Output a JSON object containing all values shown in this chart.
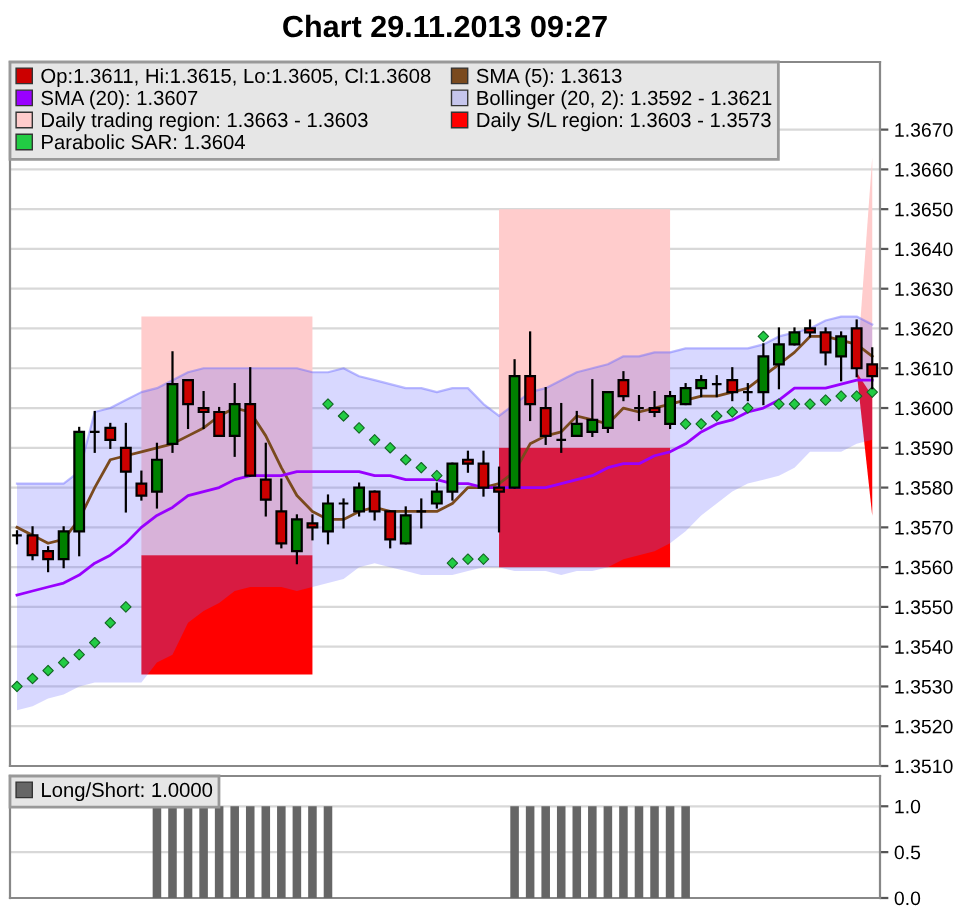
{
  "chart_data": [
    {
      "type": "candlestick",
      "title": "Chart 29.11.2013 09:27",
      "categories": [
        null,
        null,
        null,
        null,
        null,
        null,
        null,
        null,
        null,
        null,
        null,
        null,
        null,
        null,
        null,
        null,
        null,
        null,
        null,
        null,
        null,
        null,
        null,
        null,
        null,
        null,
        null,
        null,
        null,
        null,
        null,
        null,
        null,
        null,
        null,
        null,
        null,
        null,
        null,
        null,
        null,
        null,
        null,
        null,
        null,
        null,
        null,
        null,
        null,
        null,
        null,
        null,
        null,
        null,
        null,
        null
      ],
      "series": [
        {
          "name": "Op:1.3611, Hi:1.3615, Lo:1.3605, Cl:1.3608",
          "type": "candlestick",
          "color": "#cc0000",
          "colors": [
            "#000000",
            "#cc0000",
            "#cc0000",
            "#008000",
            "#008000",
            "#000000",
            "#cc0000",
            "#cc0000",
            "#cc0000",
            "#008000",
            "#008000",
            "#cc0000",
            "#cc0000",
            "#cc0000",
            "#008000",
            "#cc0000",
            "#cc0000",
            "#cc0000",
            "#008000",
            "#cc0000",
            "#008000",
            "#000000",
            "#008000",
            "#cc0000",
            "#cc0000",
            "#008000",
            "#000000",
            "#008000",
            "#008000",
            "#cc0000",
            "#cc0000",
            "#cc0000",
            "#008000",
            "#cc0000",
            "#cc0000",
            "#000000",
            "#008000",
            "#008000",
            "#008000",
            "#cc0000",
            "#000000",
            "#cc0000",
            "#008000",
            "#008000",
            "#008000",
            "#000000",
            "#cc0000",
            "#000000",
            "#008000",
            "#008000",
            "#008000",
            "#cc0000",
            "#cc0000",
            "#008000",
            "#cc0000",
            "#cc0000"
          ],
          "ohlc": [
            [
              1.3568,
              1.3569,
              1.3566,
              1.3568
            ],
            [
              1.3568,
              1.357,
              1.3562,
              1.3563
            ],
            [
              1.3564,
              1.3565,
              1.3559,
              1.3562
            ],
            [
              1.3562,
              1.357,
              1.356,
              1.3569
            ],
            [
              1.3569,
              1.3595,
              1.3563,
              1.3594
            ],
            [
              1.3594,
              1.3599,
              1.3589,
              1.3594
            ],
            [
              1.3595,
              1.3596,
              1.359,
              1.3592
            ],
            [
              1.359,
              1.3596,
              1.3574,
              1.3584
            ],
            [
              1.3581,
              1.3584,
              1.3577,
              1.3578
            ],
            [
              1.3579,
              1.3591,
              1.3575,
              1.3587
            ],
            [
              1.3591,
              1.3614,
              1.3589,
              1.3606
            ],
            [
              1.3607,
              1.3607,
              1.3595,
              1.3601
            ],
            [
              1.36,
              1.3604,
              1.3595,
              1.3599
            ],
            [
              1.3599,
              1.36,
              1.3593,
              1.3593
            ],
            [
              1.3593,
              1.3606,
              1.3588,
              1.3601
            ],
            [
              1.3601,
              1.361,
              1.3583,
              1.3583
            ],
            [
              1.3582,
              1.3591,
              1.3573,
              1.3577
            ],
            [
              1.3574,
              1.3582,
              1.3565,
              1.3566
            ],
            [
              1.3564,
              1.3573,
              1.3561,
              1.3572
            ],
            [
              1.3571,
              1.3573,
              1.3567,
              1.357
            ],
            [
              1.3569,
              1.3578,
              1.3566,
              1.3576
            ],
            [
              1.3576,
              1.3577,
              1.357,
              1.3576
            ],
            [
              1.3574,
              1.3581,
              1.3573,
              1.358
            ],
            [
              1.3579,
              1.3579,
              1.3572,
              1.3574
            ],
            [
              1.3574,
              1.3574,
              1.3565,
              1.3567
            ],
            [
              1.3566,
              1.3575,
              1.3566,
              1.3573
            ],
            [
              1.3574,
              1.3577,
              1.357,
              1.3574
            ],
            [
              1.3576,
              1.3581,
              1.3575,
              1.3579
            ],
            [
              1.3579,
              1.3586,
              1.3577,
              1.3586
            ],
            [
              1.3587,
              1.3589,
              1.3584,
              1.3586
            ],
            [
              1.3586,
              1.3589,
              1.3578,
              1.358
            ],
            [
              1.358,
              1.3585,
              1.3569,
              1.3579
            ],
            [
              1.358,
              1.3612,
              1.358,
              1.3608
            ],
            [
              1.3608,
              1.3619,
              1.3597,
              1.3601
            ],
            [
              1.36,
              1.3605,
              1.3591,
              1.3593
            ],
            [
              1.3592,
              1.3601,
              1.3589,
              1.3592
            ],
            [
              1.3593,
              1.3599,
              1.3593,
              1.3596
            ],
            [
              1.3594,
              1.3607,
              1.3593,
              1.3597
            ],
            [
              1.3595,
              1.3604,
              1.3594,
              1.3604
            ],
            [
              1.3607,
              1.3609,
              1.3602,
              1.3603
            ],
            [
              1.36,
              1.3603,
              1.3597,
              1.36
            ],
            [
              1.36,
              1.3604,
              1.3598,
              1.3599
            ],
            [
              1.3596,
              1.3604,
              1.3595,
              1.3603
            ],
            [
              1.3601,
              1.3606,
              1.3601,
              1.3605
            ],
            [
              1.3605,
              1.3608,
              1.3603,
              1.3607
            ],
            [
              1.3606,
              1.3608,
              1.3603,
              1.3606
            ],
            [
              1.3607,
              1.361,
              1.3602,
              1.3604
            ],
            [
              1.3604,
              1.3606,
              1.3602,
              1.3604
            ],
            [
              1.3604,
              1.3616,
              1.3601,
              1.3613
            ],
            [
              1.3611,
              1.362,
              1.3605,
              1.3616
            ],
            [
              1.3616,
              1.362,
              1.3616,
              1.3619
            ],
            [
              1.362,
              1.3622,
              1.3618,
              1.3619
            ],
            [
              1.3619,
              1.362,
              1.3611,
              1.3614
            ],
            [
              1.3613,
              1.3619,
              1.3607,
              1.3618
            ],
            [
              1.362,
              1.3622,
              1.3608,
              1.361
            ],
            [
              1.3611,
              1.3615,
              1.3605,
              1.3608
            ]
          ]
        },
        {
          "name": "SMA (5): 1.3613",
          "type": "line",
          "color": "#7a4a1e",
          "values": [
            1.357,
            1.3568,
            1.3566,
            1.3567,
            1.3572,
            1.358,
            1.3587,
            1.3588,
            1.3589,
            1.359,
            1.3591,
            1.3593,
            1.3595,
            1.3598,
            1.36,
            1.3599,
            1.3593,
            1.3585,
            1.3578,
            1.3574,
            1.3572,
            1.3572,
            1.3574,
            1.3575,
            1.3574,
            1.3574,
            1.3574,
            1.3574,
            1.3576,
            1.358,
            1.358,
            1.3581,
            1.3584,
            1.3591,
            1.3593,
            1.3594,
            1.3598,
            1.3597,
            1.3596,
            1.36,
            1.3599,
            1.36,
            1.3601,
            1.3602,
            1.3603,
            1.3603,
            1.3604,
            1.3605,
            1.3608,
            1.3611,
            1.3614,
            1.3618,
            1.3618,
            1.3617,
            1.3616,
            1.3613
          ]
        },
        {
          "name": "SMA (20): 1.3607",
          "type": "line",
          "color": "#9900ff",
          "values": [
            1.3553,
            1.3554,
            1.3555,
            1.3556,
            1.3558,
            1.3561,
            1.3563,
            1.3566,
            1.357,
            1.3573,
            1.3575,
            1.3578,
            1.3579,
            1.358,
            1.3582,
            1.3583,
            1.3583,
            1.3583,
            1.3584,
            1.3584,
            1.3584,
            1.3584,
            1.3584,
            1.3583,
            1.3583,
            1.3582,
            1.3582,
            1.3582,
            1.3581,
            1.3581,
            1.358,
            1.358,
            1.358,
            1.358,
            1.358,
            1.3581,
            1.3582,
            1.3583,
            1.3585,
            1.3586,
            1.3586,
            1.3588,
            1.3589,
            1.3591,
            1.3594,
            1.3596,
            1.3597,
            1.3599,
            1.36,
            1.3602,
            1.3605,
            1.3605,
            1.3605,
            1.3606,
            1.3607,
            1.3607
          ]
        },
        {
          "name": "Bollinger (20, 2): 1.3592 - 1.3621",
          "type": "line",
          "color": "#6a6aff",
          "values": [
            1.3581,
            1.3581,
            1.3581,
            1.3581,
            1.3584,
            1.3599,
            1.36,
            1.3602,
            1.3604,
            1.3605,
            1.3607,
            1.3609,
            1.361,
            1.361,
            1.361,
            1.361,
            1.361,
            1.361,
            1.361,
            1.3609,
            1.3609,
            1.361,
            1.3608,
            1.3607,
            1.3606,
            1.3605,
            1.3605,
            1.3604,
            1.3605,
            1.3605,
            1.3601,
            1.3598,
            1.3601,
            1.3604,
            1.3605,
            1.3607,
            1.3609,
            1.361,
            1.3611,
            1.3613,
            1.3613,
            1.3614,
            1.3614,
            1.3615,
            1.3615,
            1.3615,
            1.3615,
            1.3615,
            1.3616,
            1.3618,
            1.3619,
            1.362,
            1.3622,
            1.3623,
            1.3623,
            1.3621
          ],
          "upper": [
            1.3581,
            1.3581,
            1.3581,
            1.3581,
            1.3584,
            1.3599,
            1.36,
            1.3602,
            1.3604,
            1.3605,
            1.3607,
            1.3609,
            1.361,
            1.361,
            1.361,
            1.361,
            1.361,
            1.361,
            1.361,
            1.3609,
            1.3609,
            1.361,
            1.3608,
            1.3607,
            1.3606,
            1.3605,
            1.3605,
            1.3604,
            1.3605,
            1.3605,
            1.3601,
            1.3598,
            1.3601,
            1.3604,
            1.3605,
            1.3607,
            1.3609,
            1.361,
            1.3611,
            1.3613,
            1.3613,
            1.3614,
            1.3614,
            1.3615,
            1.3615,
            1.3615,
            1.3615,
            1.3615,
            1.3616,
            1.3618,
            1.3619,
            1.362,
            1.3622,
            1.3623,
            1.3623,
            1.3621
          ],
          "lower": [
            1.3524,
            1.3525,
            1.3527,
            1.3528,
            1.353,
            1.3531,
            1.3531,
            1.3531,
            1.3531,
            1.3536,
            1.3538,
            1.3546,
            1.3549,
            1.3551,
            1.3554,
            1.3555,
            1.3555,
            1.3555,
            1.3554,
            1.3555,
            1.3556,
            1.3557,
            1.356,
            1.3561,
            1.356,
            1.3559,
            1.3558,
            1.3558,
            1.3558,
            1.3559,
            1.356,
            1.356,
            1.3559,
            1.3559,
            1.3559,
            1.3558,
            1.3559,
            1.3559,
            1.356,
            1.3562,
            1.3563,
            1.3564,
            1.3566,
            1.3569,
            1.3573,
            1.3576,
            1.3579,
            1.3581,
            1.3582,
            1.3583,
            1.3585,
            1.3589,
            1.3589,
            1.3589,
            1.3591,
            1.3592
          ]
        },
        {
          "name": "Daily trading region: 1.3663 - 1.3603",
          "type": "line",
          "color": "#ffcccc",
          "values": [
            null,
            null,
            null,
            null,
            null,
            null,
            null,
            null,
            null,
            null,
            null,
            null,
            null,
            null,
            null,
            null,
            null,
            null,
            null,
            null,
            null,
            null,
            null,
            null,
            null,
            null,
            null,
            null,
            null,
            null,
            null,
            null,
            null,
            null,
            null,
            null,
            null,
            null,
            null,
            null,
            null,
            null,
            null,
            null,
            null,
            null,
            null,
            null,
            null,
            null,
            null,
            null,
            null,
            null,
            null,
            null
          ],
          "upper": [
            null,
            null,
            null,
            null,
            null,
            null,
            null,
            null,
            1.3623,
            1.3623,
            1.3623,
            1.3623,
            1.3623,
            1.3623,
            1.3623,
            1.3623,
            1.3623,
            1.3623,
            1.3623,
            1.3623,
            null,
            null,
            null,
            null,
            null,
            null,
            null,
            null,
            null,
            null,
            null,
            1.365,
            1.365,
            1.365,
            1.365,
            1.365,
            1.365,
            1.365,
            1.365,
            1.365,
            1.365,
            1.365,
            1.365,
            null,
            null,
            null,
            null,
            null,
            null,
            null,
            null,
            null,
            null,
            null,
            1.3609,
            1.3663
          ],
          "lower": [
            null,
            null,
            null,
            null,
            null,
            null,
            null,
            null,
            1.3563,
            1.3563,
            1.3563,
            1.3563,
            1.3563,
            1.3563,
            1.3563,
            1.3563,
            1.3563,
            1.3563,
            1.3563,
            1.3563,
            null,
            null,
            null,
            null,
            null,
            null,
            null,
            null,
            null,
            null,
            null,
            1.359,
            1.359,
            1.359,
            1.359,
            1.359,
            1.359,
            1.359,
            1.359,
            1.359,
            1.359,
            1.359,
            1.359,
            null,
            null,
            null,
            null,
            null,
            null,
            null,
            null,
            null,
            null,
            null,
            1.3609,
            1.3603
          ]
        },
        {
          "name": "Daily S/L region: 1.3603 - 1.3573",
          "type": "line",
          "color": "#ff0000",
          "values": [
            null,
            null,
            null,
            null,
            null,
            null,
            null,
            null,
            null,
            null,
            null,
            null,
            null,
            null,
            null,
            null,
            null,
            null,
            null,
            null,
            null,
            null,
            null,
            null,
            null,
            null,
            null,
            null,
            null,
            null,
            null,
            null,
            null,
            null,
            null,
            null,
            null,
            null,
            null,
            null,
            null,
            null,
            null,
            null,
            null,
            null,
            null,
            null,
            null,
            null,
            null,
            null,
            null,
            null,
            null,
            null
          ],
          "upper": [
            null,
            null,
            null,
            null,
            null,
            null,
            null,
            null,
            1.3563,
            1.3563,
            1.3563,
            1.3563,
            1.3563,
            1.3563,
            1.3563,
            1.3563,
            1.3563,
            1.3563,
            1.3563,
            1.3563,
            null,
            null,
            null,
            null,
            null,
            null,
            null,
            null,
            null,
            null,
            null,
            1.359,
            1.359,
            1.359,
            1.359,
            1.359,
            1.359,
            1.359,
            1.359,
            1.359,
            1.359,
            1.359,
            1.359,
            null,
            null,
            null,
            null,
            null,
            null,
            null,
            null,
            null,
            null,
            null,
            1.3609,
            1.3603
          ],
          "lower": [
            null,
            null,
            null,
            null,
            null,
            null,
            null,
            null,
            1.3533,
            1.3533,
            1.3533,
            1.3533,
            1.3533,
            1.3533,
            1.3533,
            1.3533,
            1.3533,
            1.3533,
            1.3533,
            1.3533,
            null,
            null,
            null,
            null,
            null,
            null,
            null,
            null,
            null,
            null,
            null,
            1.356,
            1.356,
            1.356,
            1.356,
            1.356,
            1.356,
            1.356,
            1.356,
            1.356,
            1.356,
            1.356,
            1.356,
            null,
            null,
            null,
            null,
            null,
            null,
            null,
            null,
            null,
            null,
            null,
            1.3609,
            1.3573
          ]
        },
        {
          "name": "Parabolic SAR: 1.3604",
          "type": "scatter",
          "color": "#22cc44",
          "marker": "diamond",
          "values": [
            1.353,
            1.3532,
            1.3534,
            1.3536,
            1.3538,
            1.3541,
            1.3546,
            1.355,
            null,
            null,
            null,
            null,
            null,
            null,
            null,
            null,
            null,
            null,
            null,
            null,
            1.3601,
            1.3598,
            1.3595,
            1.3592,
            1.359,
            1.3587,
            1.3585,
            1.3583,
            1.3561,
            1.3562,
            1.3562,
            null,
            null,
            null,
            null,
            null,
            null,
            null,
            null,
            null,
            null,
            null,
            null,
            1.3596,
            1.3596,
            1.3598,
            1.3599,
            1.36,
            1.3618,
            1.3601,
            1.3601,
            1.3601,
            1.3602,
            1.3603,
            1.3603,
            1.3604
          ]
        }
      ],
      "ylim": [
        1.351,
        1.3687
      ],
      "yticks": [
        {
          "value": 1.351,
          "label": "1.3510"
        },
        {
          "value": 1.352,
          "label": "1.3520"
        },
        {
          "value": 1.353,
          "label": "1.3530"
        },
        {
          "value": 1.354,
          "label": "1.3540"
        },
        {
          "value": 1.355,
          "label": "1.3550"
        },
        {
          "value": 1.356,
          "label": "1.3560"
        },
        {
          "value": 1.357,
          "label": "1.3570"
        },
        {
          "value": 1.358,
          "label": "1.3580"
        },
        {
          "value": 1.359,
          "label": "1.3590"
        },
        {
          "value": 1.36,
          "label": "1.3600"
        },
        {
          "value": 1.361,
          "label": "1.3610"
        },
        {
          "value": 1.362,
          "label": "1.3620"
        },
        {
          "value": 1.363,
          "label": "1.3630"
        },
        {
          "value": 1.364,
          "label": "1.3640"
        },
        {
          "value": 1.365,
          "label": "1.3650"
        },
        {
          "value": 1.366,
          "label": "1.3660"
        },
        {
          "value": 1.367,
          "label": "1.3670"
        }
      ],
      "grid": "y",
      "legend": "top left",
      "tick_labels": "y"
    },
    {
      "type": "bar",
      "categories": [
        null,
        null,
        null,
        null,
        null,
        null,
        null,
        null,
        null,
        null,
        null,
        null,
        null,
        null,
        null,
        null,
        null,
        null,
        null,
        null,
        null,
        null,
        null,
        null,
        null,
        null,
        null,
        null,
        null,
        null,
        null,
        null,
        null,
        null,
        null,
        null,
        null,
        null,
        null,
        null,
        null,
        null,
        null,
        null,
        null,
        null,
        null,
        null,
        null,
        null,
        null,
        null,
        null,
        null,
        null,
        null
      ],
      "series": [
        {
          "name": "Long/Short: 1.0000",
          "color": "#666666",
          "values": [
            0,
            0,
            0,
            0,
            0,
            0,
            0,
            0,
            0,
            1,
            1,
            1,
            1,
            1,
            1,
            1,
            1,
            1,
            1,
            1,
            1,
            0,
            0,
            0,
            0,
            0,
            0,
            0,
            0,
            0,
            0,
            0,
            1,
            1,
            1,
            1,
            1,
            1,
            1,
            1,
            1,
            1,
            1,
            1,
            0,
            0,
            0,
            0,
            0,
            0,
            0,
            0,
            0,
            0,
            0,
            0
          ]
        }
      ],
      "ylim": [
        0,
        1.33
      ],
      "yticks": [
        {
          "value": 0,
          "label": "0.0"
        },
        {
          "value": 0.5,
          "label": "0.5"
        },
        {
          "value": 1,
          "label": "1.0"
        }
      ],
      "grid": "y",
      "legend": "top left",
      "tick_labels": "y"
    }
  ]
}
